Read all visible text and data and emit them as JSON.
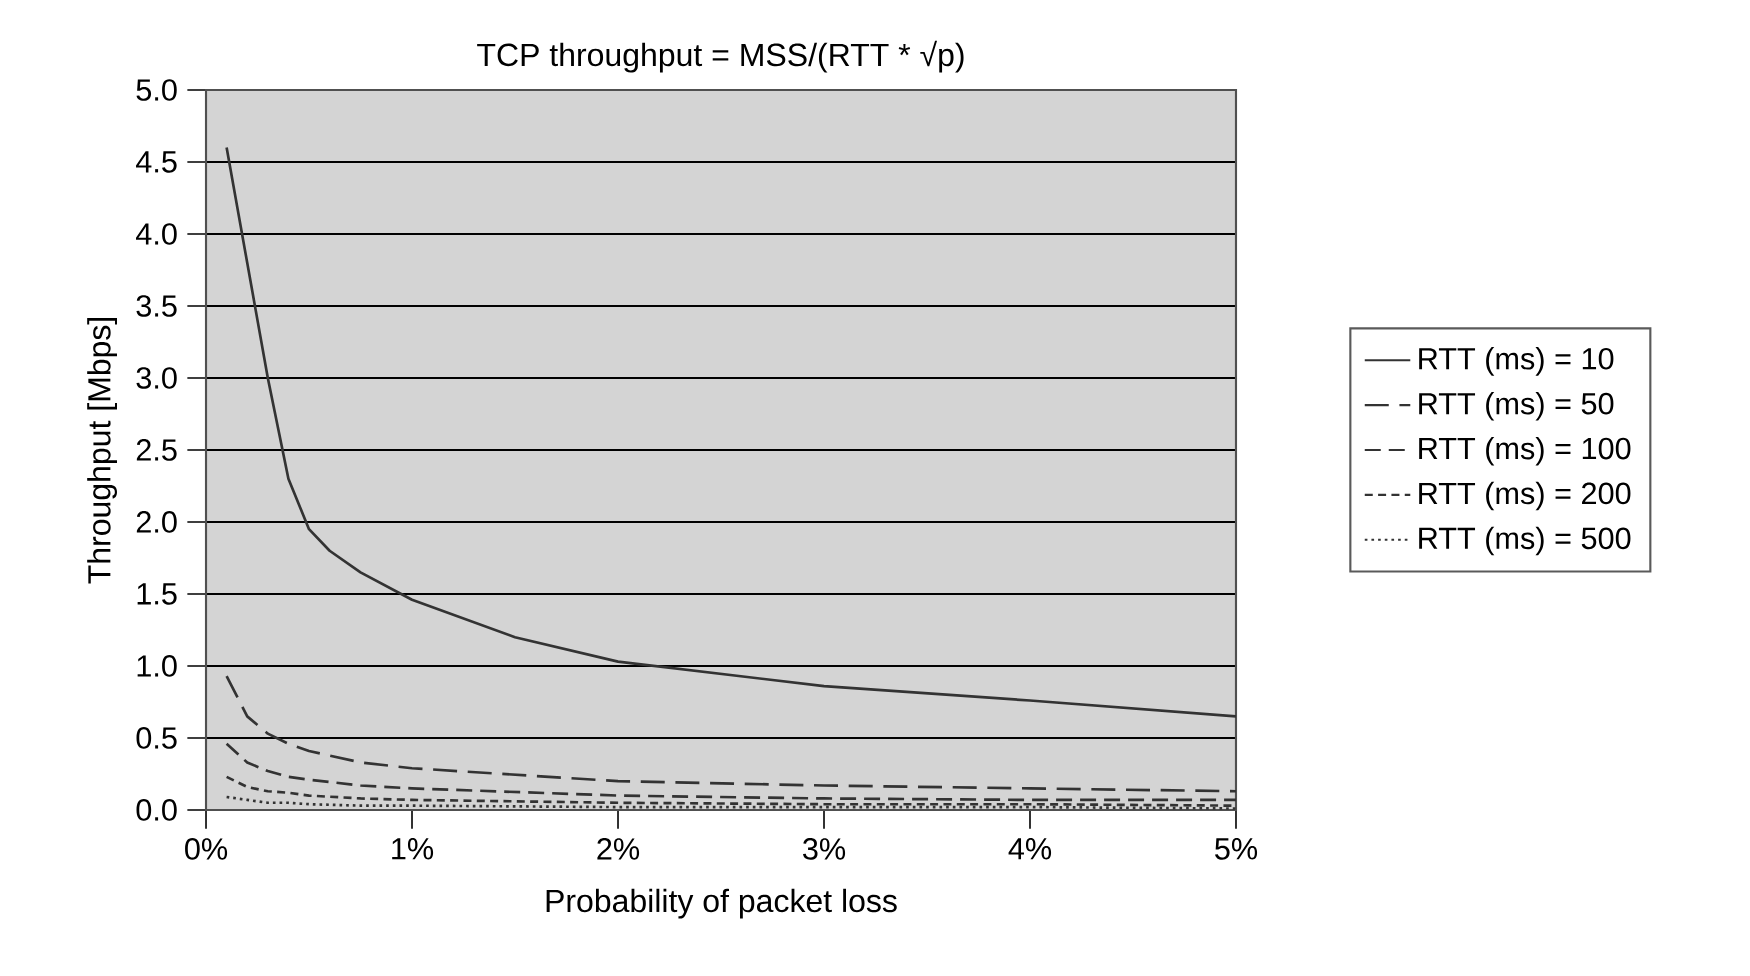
{
  "chart_data": {
    "type": "line",
    "title": "TCP throughput = MSS/(RTT * √p)",
    "xlabel": "Probability of packet loss",
    "ylabel": "Throughput [Mbps]",
    "xlim": [
      0,
      5
    ],
    "xticks": [
      {
        "value": 0,
        "label": "0%"
      },
      {
        "value": 1,
        "label": "1%"
      },
      {
        "value": 2,
        "label": "2%"
      },
      {
        "value": 3,
        "label": "3%"
      },
      {
        "value": 4,
        "label": "4%"
      },
      {
        "value": 5,
        "label": "5%"
      }
    ],
    "ylim": [
      0,
      5
    ],
    "yticks": [
      {
        "value": 0,
        "label": "0.0"
      },
      {
        "value": 0.5,
        "label": "0.5"
      },
      {
        "value": 1,
        "label": "1.0"
      },
      {
        "value": 1.5,
        "label": "1.5"
      },
      {
        "value": 2,
        "label": "2.0"
      },
      {
        "value": 2.5,
        "label": "2.5"
      },
      {
        "value": 3,
        "label": "3.0"
      },
      {
        "value": 3.5,
        "label": "3.5"
      },
      {
        "value": 4,
        "label": "4.0"
      },
      {
        "value": 4.5,
        "label": "4.5"
      },
      {
        "value": 5,
        "label": "5.0"
      }
    ],
    "grid": "y",
    "legend": "right",
    "marker": "none",
    "series": [
      {
        "name": "RTT (ms) = 10",
        "color": "#333333",
        "line_style": "solid",
        "x": [
          0.1,
          0.2,
          0.3,
          0.4,
          0.5,
          0.6,
          0.75,
          1,
          1.5,
          2,
          3,
          4,
          5
        ],
        "values": [
          4.6,
          3.8,
          3.0,
          2.3,
          1.95,
          1.8,
          1.65,
          1.46,
          1.2,
          1.03,
          0.86,
          0.76,
          0.65
        ]
      },
      {
        "name": "RTT (ms) = 50",
        "color": "#333333",
        "line_style": "dashed",
        "x": [
          0.1,
          0.2,
          0.3,
          0.4,
          0.5,
          0.75,
          1,
          2,
          3,
          4,
          5
        ],
        "values": [
          0.93,
          0.65,
          0.53,
          0.46,
          0.41,
          0.33,
          0.29,
          0.2,
          0.17,
          0.15,
          0.13
        ]
      },
      {
        "name": "RTT (ms) = 100",
        "color": "#333333",
        "line_style": "dashed",
        "x": [
          0.1,
          0.2,
          0.3,
          0.4,
          0.5,
          0.75,
          1,
          2,
          3,
          4,
          5
        ],
        "values": [
          0.46,
          0.33,
          0.27,
          0.23,
          0.21,
          0.17,
          0.15,
          0.1,
          0.08,
          0.07,
          0.07
        ]
      },
      {
        "name": "RTT (ms) = 200",
        "color": "#333333",
        "line_style": "dashed",
        "x": [
          0.1,
          0.2,
          0.3,
          0.4,
          0.5,
          0.75,
          1,
          2,
          3,
          4,
          5
        ],
        "values": [
          0.23,
          0.16,
          0.13,
          0.12,
          0.1,
          0.08,
          0.07,
          0.05,
          0.04,
          0.04,
          0.03
        ]
      },
      {
        "name": "RTT (ms) = 500",
        "color": "#333333",
        "line_style": "dotted",
        "x": [
          0.1,
          0.2,
          0.3,
          0.4,
          0.5,
          0.75,
          1,
          2,
          3,
          4,
          5
        ],
        "values": [
          0.09,
          0.07,
          0.05,
          0.05,
          0.04,
          0.03,
          0.03,
          0.02,
          0.02,
          0.02,
          0.01
        ]
      }
    ]
  }
}
